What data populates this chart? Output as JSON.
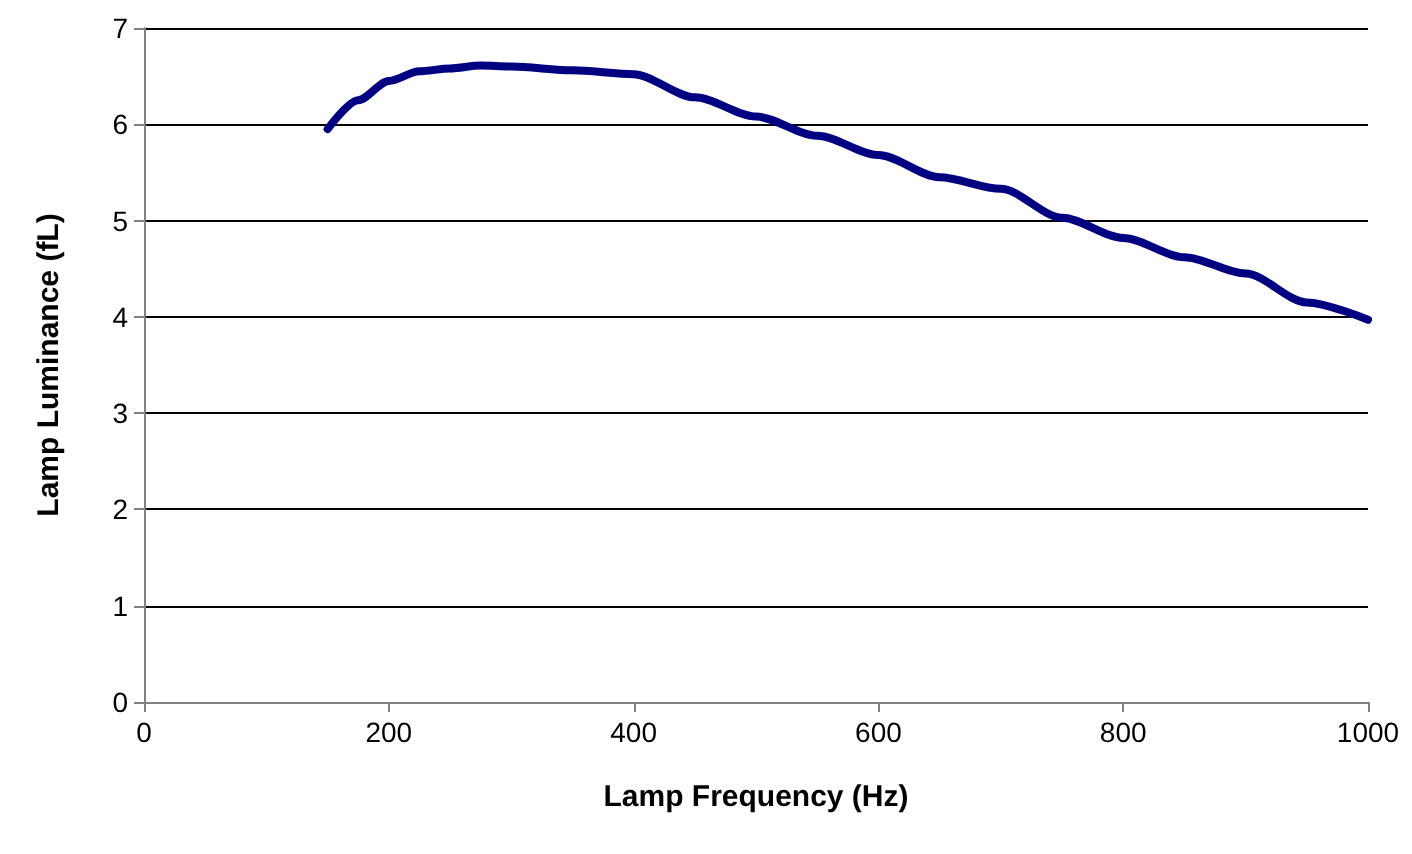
{
  "chart_data": {
    "type": "line",
    "xlabel": "Lamp Frequency (Hz)",
    "ylabel": "Lamp Luminance (fL)",
    "x": [
      150,
      175,
      200,
      225,
      250,
      275,
      300,
      350,
      400,
      450,
      500,
      550,
      600,
      650,
      700,
      750,
      800,
      850,
      900,
      950,
      1000
    ],
    "series": [
      {
        "color": "#000080",
        "values": [
          5.95,
          6.25,
          6.45,
          6.55,
          6.58,
          6.61,
          6.6,
          6.56,
          6.52,
          6.28,
          6.08,
          5.88,
          5.68,
          5.45,
          5.33,
          5.03,
          4.82,
          4.62,
          4.45,
          4.15,
          3.97
        ]
      }
    ],
    "xlim": [
      0,
      1000
    ],
    "xticks": [
      0,
      200,
      400,
      600,
      800,
      1000
    ],
    "ylim": [
      0,
      7
    ],
    "yticks": [
      0,
      1,
      2,
      3,
      4,
      5,
      6,
      7
    ],
    "grid": "y",
    "marker": "none",
    "line_style": "solid"
  }
}
